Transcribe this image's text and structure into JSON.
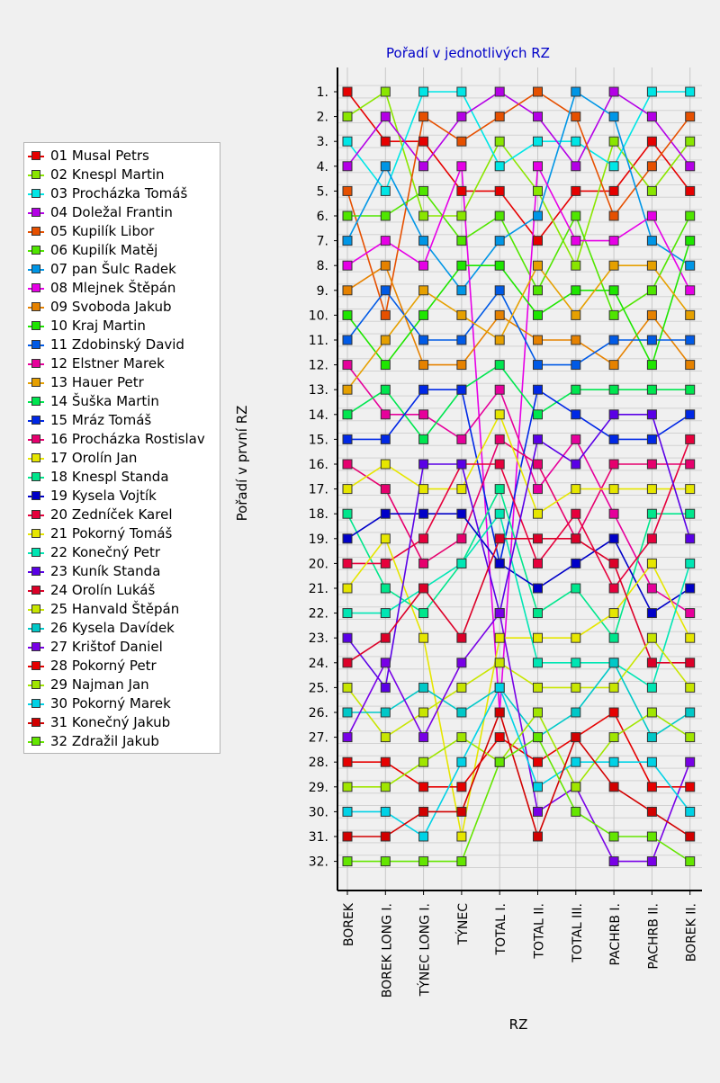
{
  "chart_data": {
    "type": "line",
    "title": "Pořadí v jednotlivých RZ",
    "xlabel": "RZ",
    "ylabel": "Pořadí v první RZ",
    "categories": [
      "BOREK",
      "BOREK LONG I.",
      "TÝNEC LONG I.",
      "TÝNEC",
      "TOTAL I.",
      "TOTAL II.",
      "TOTAL III.",
      "PACHRB I.",
      "PACHRB II.",
      "BOREK II."
    ],
    "y_tick_labels": [
      "1.",
      "2.",
      "3.",
      "4.",
      "5.",
      "6.",
      "7.",
      "8.",
      "9.",
      "10.",
      "11.",
      "12.",
      "13.",
      "14.",
      "15.",
      "16.",
      "17.",
      "18.",
      "19.",
      "20.",
      "21.",
      "22.",
      "23.",
      "24.",
      "25.",
      "26.",
      "27.",
      "28.",
      "29.",
      "30.",
      "31.",
      "32."
    ],
    "ylim": [
      1,
      32
    ],
    "y_inverted": true,
    "grid": true,
    "legend_position": "left",
    "series": [
      {
        "name": "01 Musal Petrs",
        "color": "#e60000",
        "values": [
          1,
          3,
          3,
          5,
          5,
          7,
          5,
          5,
          3,
          5
        ]
      },
      {
        "name": "02 Knespl Martin",
        "color": "#8ae600",
        "values": [
          2,
          1,
          6,
          6,
          3,
          5,
          8,
          3,
          5,
          3
        ]
      },
      {
        "name": "03 Procházka Tomáš",
        "color": "#00e6e6",
        "values": [
          3,
          5,
          1,
          1,
          4,
          3,
          3,
          4,
          1,
          1
        ]
      },
      {
        "name": "04 Doležal Frantin",
        "color": "#b400e6",
        "values": [
          4,
          2,
          4,
          2,
          1,
          2,
          4,
          1,
          2,
          4
        ]
      },
      {
        "name": "05 Kupilík Libor",
        "color": "#e65000",
        "values": [
          5,
          10,
          2,
          3,
          2,
          1,
          2,
          6,
          4,
          2
        ]
      },
      {
        "name": "06 Kupilík Matěj",
        "color": "#50e600",
        "values": [
          6,
          6,
          5,
          7,
          6,
          9,
          6,
          10,
          9,
          6
        ]
      },
      {
        "name": "07 pan Šulc Radek",
        "color": "#0096e6",
        "values": [
          7,
          4,
          7,
          9,
          7,
          6,
          1,
          2,
          7,
          8
        ]
      },
      {
        "name": "08 Mlejnek Štěpán",
        "color": "#e600e6",
        "values": [
          8,
          7,
          8,
          4,
          26,
          4,
          7,
          7,
          6,
          9
        ]
      },
      {
        "name": "09 Svoboda Jakub",
        "color": "#e68200",
        "values": [
          9,
          8,
          12,
          12,
          10,
          11,
          11,
          12,
          10,
          12
        ]
      },
      {
        "name": "10 Kraj Martin",
        "color": "#1ee600",
        "values": [
          10,
          12,
          10,
          8,
          8,
          10,
          9,
          9,
          12,
          7
        ]
      },
      {
        "name": "11 Zdobinský David",
        "color": "#005ae6",
        "values": [
          11,
          9,
          11,
          11,
          9,
          12,
          12,
          11,
          11,
          11
        ]
      },
      {
        "name": "12 Elstner Marek",
        "color": "#e6009b",
        "values": [
          12,
          14,
          14,
          15,
          13,
          17,
          15,
          18,
          21,
          22
        ]
      },
      {
        "name": "13 Hauer Petr",
        "color": "#e6a000",
        "values": [
          13,
          11,
          9,
          10,
          11,
          8,
          10,
          8,
          8,
          10
        ]
      },
      {
        "name": "14 Šuška Martin",
        "color": "#00e650",
        "values": [
          14,
          13,
          15,
          13,
          12,
          14,
          13,
          13,
          13,
          13
        ]
      },
      {
        "name": "15 Mráz Tomáš",
        "color": "#0028e6",
        "values": [
          15,
          15,
          13,
          13,
          20,
          13,
          14,
          15,
          15,
          14
        ]
      },
      {
        "name": "16 Procházka Rostislav",
        "color": "#e6006e",
        "values": [
          16,
          17,
          20,
          19,
          15,
          16,
          19,
          16,
          16,
          16
        ]
      },
      {
        "name": "17 Orolín Jan",
        "color": "#e6e600",
        "values": [
          17,
          16,
          17,
          17,
          14,
          18,
          17,
          17,
          17,
          17
        ]
      },
      {
        "name": "18 Knespl Standa",
        "color": "#00e68c",
        "values": [
          18,
          21,
          22,
          20,
          17,
          22,
          21,
          23,
          18,
          18
        ]
      },
      {
        "name": "19 Kysela Vojtík",
        "color": "#0000c8",
        "values": [
          19,
          18,
          18,
          18,
          20,
          21,
          20,
          19,
          22,
          21
        ]
      },
      {
        "name": "20 Zedníček Karel",
        "color": "#e6003c",
        "values": [
          20,
          20,
          19,
          16,
          16,
          20,
          18,
          21,
          19,
          15
        ]
      },
      {
        "name": "21 Pokorný Tomáš",
        "color": "#e6e600",
        "values": [
          21,
          19,
          23,
          31,
          23,
          23,
          23,
          22,
          20,
          23
        ]
      },
      {
        "name": "22 Konečný Petr",
        "color": "#00e6b4",
        "values": [
          22,
          22,
          21,
          20,
          18,
          24,
          24,
          24,
          25,
          20
        ]
      },
      {
        "name": "23 Kuník Standa",
        "color": "#5a00e6",
        "values": [
          23,
          25,
          16,
          16,
          22,
          15,
          16,
          14,
          14,
          19
        ]
      },
      {
        "name": "24 Orolín Lukáš",
        "color": "#dc0028",
        "values": [
          24,
          23,
          21,
          23,
          19,
          19,
          19,
          20,
          24,
          24
        ]
      },
      {
        "name": "25 Hanvald Štěpán",
        "color": "#c8e600",
        "values": [
          25,
          27,
          26,
          25,
          24,
          25,
          25,
          25,
          23,
          25
        ]
      },
      {
        "name": "26 Kysela Davídek",
        "color": "#00c8c8",
        "values": [
          26,
          26,
          25,
          26,
          25,
          27,
          26,
          24,
          27,
          26
        ]
      },
      {
        "name": "27 Krištof Daniel",
        "color": "#7800e6",
        "values": [
          27,
          24,
          27,
          24,
          22,
          30,
          29,
          32,
          32,
          28
        ]
      },
      {
        "name": "28 Pokorný Petr",
        "color": "#e60000",
        "values": [
          28,
          28,
          29,
          29,
          27,
          28,
          27,
          26,
          29,
          29
        ]
      },
      {
        "name": "29 Najman Jan",
        "color": "#a0e600",
        "values": [
          29,
          29,
          28,
          27,
          28,
          26,
          29,
          27,
          26,
          27
        ]
      },
      {
        "name": "30 Pokorný Marek",
        "color": "#00d2e6",
        "values": [
          30,
          30,
          31,
          28,
          25,
          29,
          28,
          28,
          28,
          30
        ]
      },
      {
        "name": "31 Konečný Jakub",
        "color": "#d20000",
        "values": [
          31,
          31,
          30,
          30,
          26,
          31,
          27,
          29,
          30,
          31
        ]
      },
      {
        "name": "32 Zdražil Jakub",
        "color": "#64e600",
        "values": [
          32,
          32,
          32,
          32,
          28,
          27,
          30,
          31,
          31,
          32
        ]
      }
    ]
  }
}
